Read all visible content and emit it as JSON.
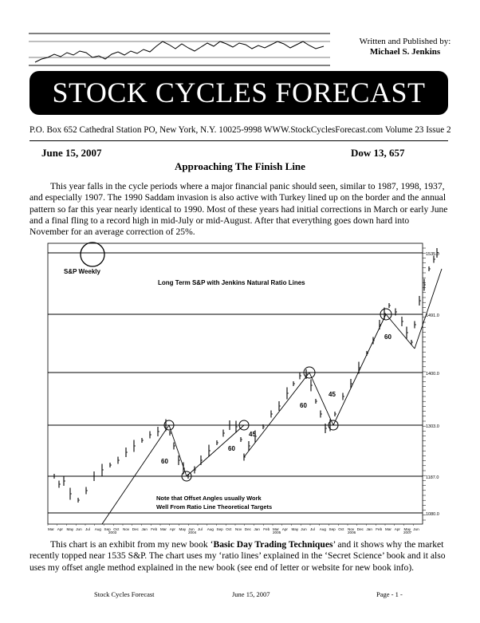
{
  "masthead": {
    "written_label": "Written and Published by:",
    "author": "Michael S. Jenkins",
    "title": "STOCK CYCLES FORECAST",
    "address": "P.O. Box 652 Cathedral Station PO, New York, N.Y. 10025-9998 WWW.StockCyclesForecast.com Volume 23 Issue 2"
  },
  "issue": {
    "date": "June 15, 2007",
    "dow": "Dow 13, 657",
    "headline": "Approaching The Finish Line"
  },
  "body": {
    "paragraph1": "This year falls in the cycle periods where a major financial panic should seen, similar to 1987, 1998, 1937, and especially 1907. The 1990 Saddam invasion is also active with Turkey lined up on the border and the annual pattern so far this year nearly identical to 1990. Most of these years had initial corrections in March or early June and a final fling to a record high in mid-July or mid-August. After that everything goes down hard into November for an average correction of 25%.",
    "paragraph2_a": "This chart is an exhibit from my new book ‘",
    "paragraph2_book1": "Basic Day Trading Techniques",
    "paragraph2_b": "’ and it shows why the market recently topped near 1535 S&P. The chart uses my ‘ratio lines’ explained in the ‘Secret Science’ book and it also uses my offset angle method explained in the new book (see end of letter or website for new book info)."
  },
  "chart": {
    "label_weekly": "S&P Weekly",
    "title": "Long Term S&P with Jenkins Natural Ratio Lines",
    "note_line1": "Note that Offset Angles usually Work",
    "note_line2": "Well From Ratio Line Theoretical Targets",
    "angle_labels": [
      "60",
      "60",
      "45",
      "60",
      "45",
      "60"
    ],
    "month_labels": [
      "Mar",
      "Apr",
      "May",
      "Jun",
      "Jul",
      "Aug",
      "Sep",
      "Oct",
      "Nov",
      "Dec",
      "Jan",
      "Feb",
      "Mar",
      "Apr",
      "May",
      "Jun",
      "Jul",
      "Aug",
      "Sep",
      "Oct",
      "Nov",
      "Dec",
      "Jan",
      "Feb",
      "Mar",
      "Apr",
      "May",
      "Jun",
      "Jul",
      "Aug",
      "Sep",
      "Oct",
      "Nov",
      "Dec",
      "Jan",
      "Feb",
      "Mar",
      "Apr",
      "May",
      "Jun"
    ],
    "year_labels": [
      "2003",
      "2004",
      "2005",
      "2006",
      "2007"
    ],
    "ratio_line_labels": [
      "1535.0",
      "1491.0",
      "1400.0",
      "1303.0",
      "1187.0",
      "1080.0"
    ]
  },
  "footer": {
    "left": "Stock Cycles Forecast",
    "middle": "June 15, 2007",
    "right": "Page - 1 -"
  }
}
